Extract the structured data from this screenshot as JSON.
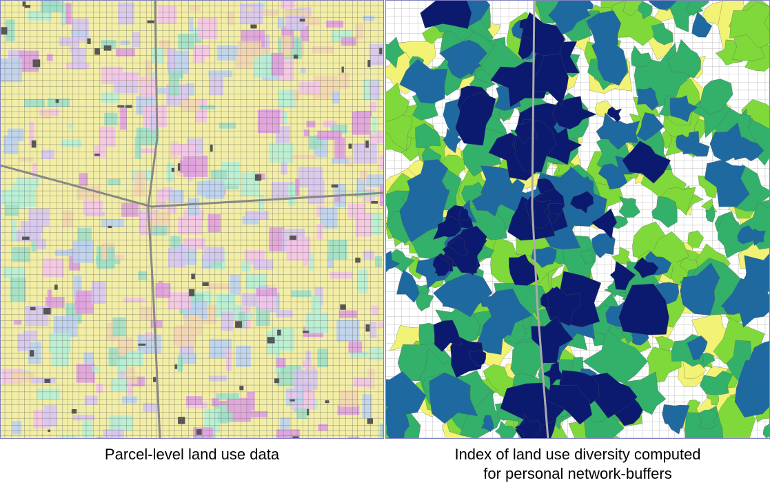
{
  "panels": [
    {
      "caption": "Parcel-level land use data"
    },
    {
      "caption_lines": [
        "Index of land use diversity computed",
        "for personal network-buffers"
      ]
    }
  ]
}
